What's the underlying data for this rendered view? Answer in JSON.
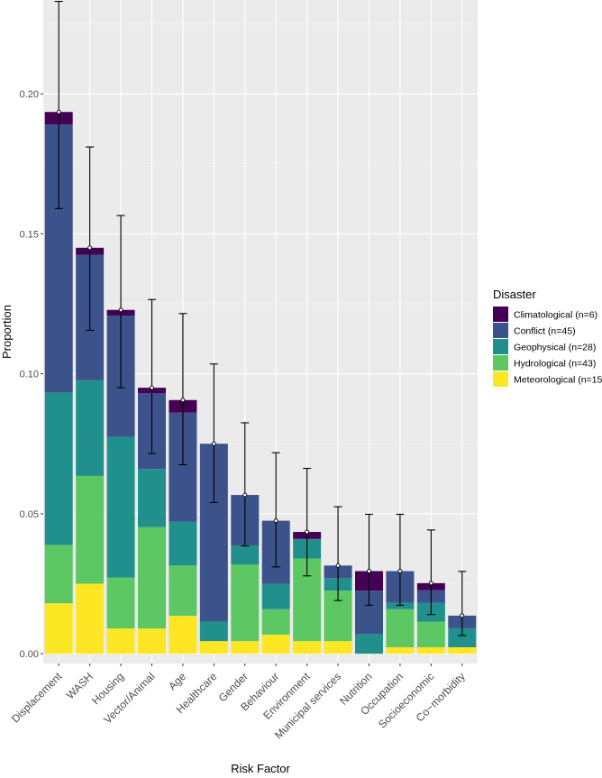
{
  "chart_data": {
    "type": "bar",
    "stacked": true,
    "title": "",
    "xlabel": "Risk Factor",
    "ylabel": "Proportion",
    "ylim": [
      -0.0035,
      0.2335
    ],
    "yticks": [
      0.0,
      0.05,
      0.1,
      0.15,
      0.2
    ],
    "ytick_labels": [
      "0.00",
      "0.05",
      "0.10",
      "0.15",
      "0.20"
    ],
    "grid": true,
    "legend_position": "right",
    "legend_title": "Disaster",
    "categories": [
      "Displacement",
      "WASH",
      "Housing",
      "Vector/Animal",
      "Age",
      "Healthcare",
      "Gender",
      "Behaviour",
      "Environment",
      "Municipal services",
      "Nutrition",
      "Occupation",
      "Socioeconomic",
      "Co−morbidity"
    ],
    "series": [
      {
        "name": "Meteorological (n=15)",
        "color": "#FDE725",
        "values": [
          0.018,
          0.025,
          0.009,
          0.009,
          0.0135,
          0.0045,
          0.0045,
          0.0068,
          0.0045,
          0.0045,
          0.0,
          0.0023,
          0.0023,
          0.0023
        ]
      },
      {
        "name": "Hydrological (n=43)",
        "color": "#5DC863",
        "values": [
          0.0208,
          0.0385,
          0.0182,
          0.0362,
          0.018,
          0.0,
          0.0273,
          0.0091,
          0.0295,
          0.018,
          0.0,
          0.0136,
          0.0091,
          0.0
        ]
      },
      {
        "name": "Geophysical (n=28)",
        "color": "#21908C",
        "values": [
          0.0545,
          0.0342,
          0.0503,
          0.0208,
          0.0157,
          0.007,
          0.0069,
          0.009,
          0.007,
          0.0045,
          0.007,
          0.0023,
          0.0068,
          0.0068
        ]
      },
      {
        "name": "Conflict (n=45)",
        "color": "#3B528B",
        "values": [
          0.0957,
          0.0448,
          0.0433,
          0.027,
          0.0389,
          0.0635,
          0.018,
          0.0226,
          0.0,
          0.0045,
          0.0155,
          0.0113,
          0.0045,
          0.0045
        ]
      },
      {
        "name": "Climatological (n=6)",
        "color": "#440154",
        "values": [
          0.0045,
          0.0025,
          0.002,
          0.002,
          0.0045,
          0.0,
          0.0,
          0.0,
          0.0025,
          0.0,
          0.007,
          0.0,
          0.0025,
          0.0
        ]
      }
    ],
    "totals": [
      0.1935,
      0.145,
      0.1228,
      0.095,
      0.0906,
      0.075,
      0.0567,
      0.0475,
      0.0435,
      0.0315,
      0.0295,
      0.0295,
      0.0252,
      0.0136
    ],
    "error_low": [
      0.159,
      0.1155,
      0.095,
      0.0715,
      0.0675,
      0.054,
      0.0385,
      0.031,
      0.0278,
      0.019,
      0.0173,
      0.0173,
      0.014,
      0.0065
    ],
    "error_high": [
      0.233,
      0.181,
      0.1565,
      0.1265,
      0.1215,
      0.1035,
      0.0825,
      0.0718,
      0.0662,
      0.0525,
      0.0498,
      0.0498,
      0.0442,
      0.0294
    ],
    "legend_order": [
      "Climatological (n=6)",
      "Conflict (n=45)",
      "Geophysical (n=28)",
      "Hydrological (n=43)",
      "Meteorological (n=15)"
    ]
  }
}
